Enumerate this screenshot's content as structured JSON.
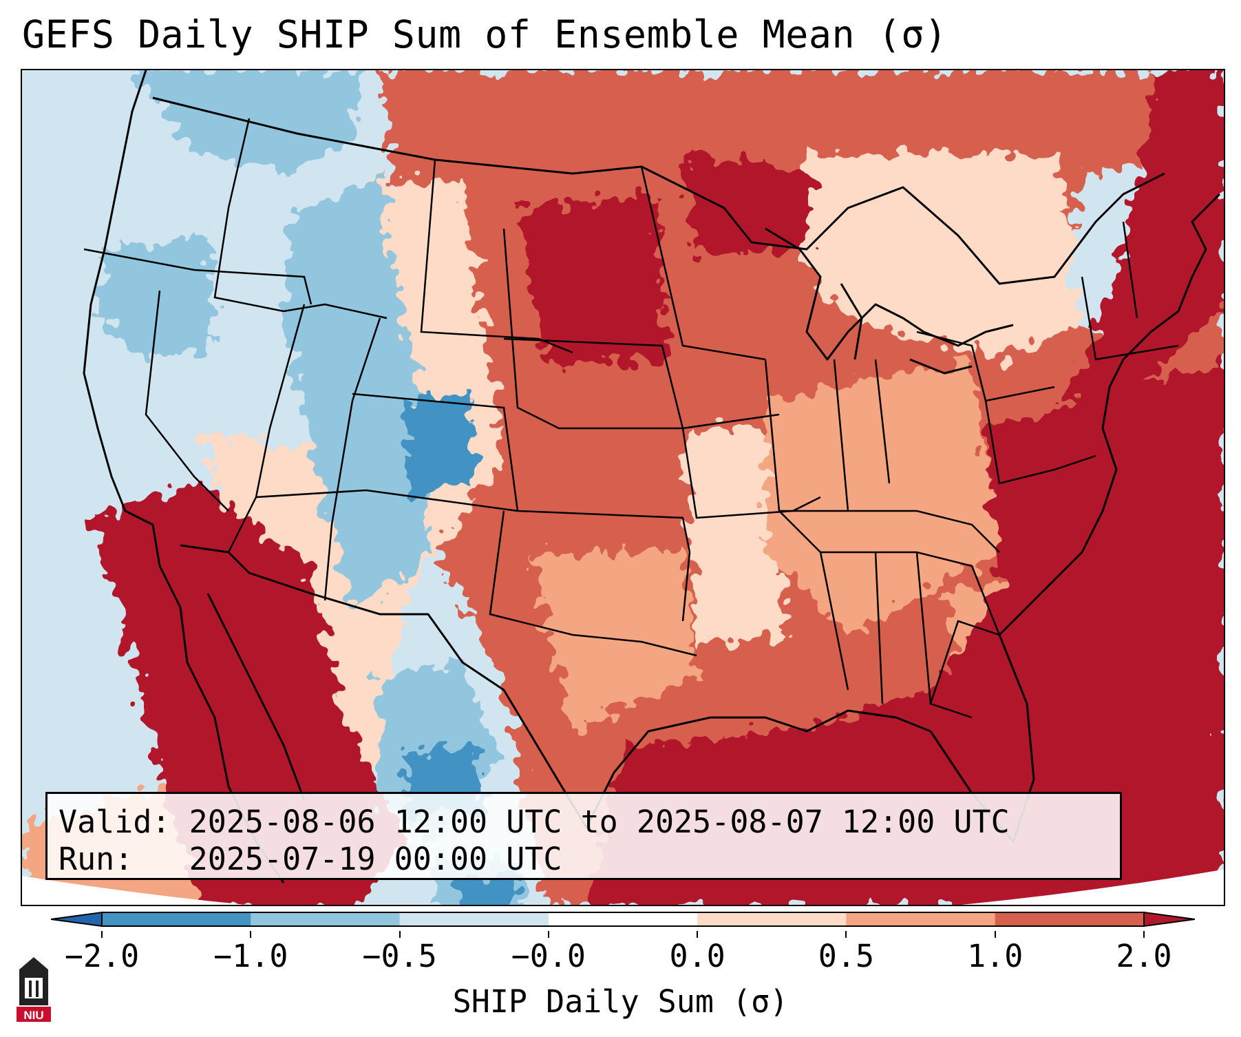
{
  "title": "GEFS Daily SHIP Sum of Ensemble Mean (σ)",
  "valid_line": "Valid: 2025-08-06 12:00 UTC to 2025-08-07 12:00 UTC",
  "run_line": "Run:   2025-07-19 00:00 UTC",
  "colorbar": {
    "label": "SHIP Daily Sum (σ)",
    "tick_labels": [
      "−2.0",
      "−1.0",
      "−0.5",
      "−0.0",
      "0.0",
      "0.5",
      "1.0",
      "2.0"
    ],
    "bins": [
      "#2166ac",
      "#4393c3",
      "#92c5de",
      "#d1e5f0",
      "#ffffff",
      "#fddbc7",
      "#f4a582",
      "#d6604d",
      "#b2182b"
    ],
    "extend": "both"
  },
  "map": {
    "projection": "Lambert conformal, CONUS",
    "features": [
      "coastlines",
      "country borders",
      "state borders"
    ]
  },
  "logo_text": "NIU"
}
